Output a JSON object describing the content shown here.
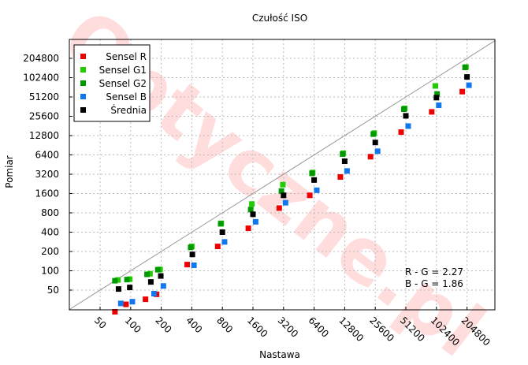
{
  "chart_data": {
    "type": "scatter",
    "title": "Czułość ISO",
    "xlabel": "Nastawa",
    "ylabel": "Pomiar",
    "log_scale": true,
    "grid": true,
    "legend_position": "top-left",
    "x_ticks": [
      "50",
      "100",
      "200",
      "400",
      "800",
      "1600",
      "3200",
      "6400",
      "12800",
      "25600",
      "51200",
      "102400",
      "204800"
    ],
    "y_ticks": [
      "50",
      "100",
      "200",
      "400",
      "800",
      "1600",
      "3200",
      "6400",
      "12800",
      "25600",
      "51200",
      "102400",
      "204800"
    ],
    "reference_line": "y = x",
    "annotations": [
      "R - G = 2.27",
      "B - G = 1.86"
    ],
    "watermark": "Optyczne.pl",
    "series": [
      {
        "name": "Sensel R",
        "color": "#ee0000",
        "x": [
          70,
          90,
          140,
          180,
          360,
          720,
          1440,
          2900,
          5800,
          11600,
          23000,
          46000,
          92000,
          184000
        ],
        "y": [
          23,
          30,
          36,
          43,
          125,
          240,
          460,
          950,
          1500,
          2900,
          6000,
          14500,
          30000,
          62000
        ]
      },
      {
        "name": "Sensel G1",
        "color": "#22cc00",
        "x": [
          75,
          98,
          155,
          195,
          400,
          780,
          1560,
          3150,
          6200,
          12400,
          25000,
          50000,
          100000,
          200000
        ],
        "y": [
          72,
          74,
          90,
          105,
          240,
          550,
          1100,
          2200,
          3400,
          6800,
          14000,
          34000,
          76000,
          150000
        ]
      },
      {
        "name": "Sensel G2",
        "color": "#009900",
        "x": [
          70,
          92,
          145,
          185,
          390,
          770,
          1520,
          3050,
          6100,
          12200,
          24500,
          49000,
          104000,
          196000
        ],
        "y": [
          70,
          73,
          88,
          104,
          232,
          540,
          900,
          1750,
          3300,
          6600,
          13500,
          33000,
          57000,
          148000
        ]
      },
      {
        "name": "Sensel B",
        "color": "#1177ee",
        "x": [
          80,
          104,
          170,
          210,
          420,
          840,
          1700,
          3350,
          6800,
          13500,
          27000,
          54000,
          108000,
          214000
        ],
        "y": [
          31,
          33,
          44,
          58,
          122,
          282,
          580,
          1150,
          1800,
          3600,
          7300,
          18000,
          38000,
          78000
        ]
      },
      {
        "name": "Średnia",
        "color": "#000000",
        "x": [
          76,
          98,
          158,
          198,
          405,
          800,
          1600,
          3200,
          6400,
          12800,
          25600,
          51200,
          102400,
          204800
        ],
        "y": [
          52,
          55,
          67,
          83,
          180,
          400,
          760,
          1500,
          2600,
          5100,
          10000,
          26000,
          50000,
          105000
        ]
      }
    ]
  }
}
